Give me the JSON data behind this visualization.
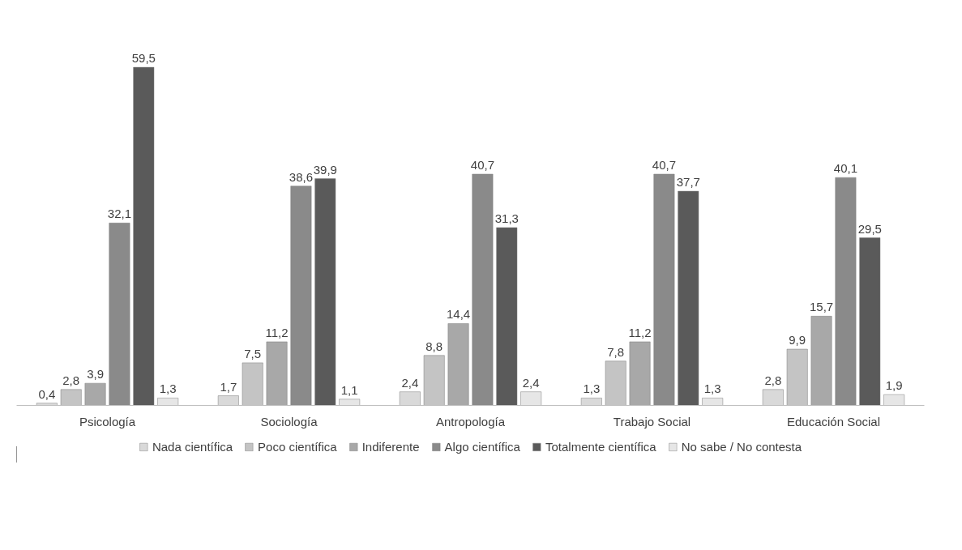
{
  "chart_data": {
    "type": "bar",
    "categories": [
      "Psicología",
      "Sociología",
      "Antropología",
      "Trabajo Social",
      "Educación Social"
    ],
    "series": [
      {
        "name": "Nada científica",
        "color": "#d9d9d9",
        "values": [
          0.4,
          1.7,
          2.4,
          1.3,
          2.8
        ],
        "value_labels": [
          "0,4",
          "1,7",
          "2,4",
          "1,3",
          "2,8"
        ]
      },
      {
        "name": "Poco científica",
        "color": "#c4c4c4",
        "values": [
          2.8,
          7.5,
          8.8,
          7.8,
          9.9
        ],
        "value_labels": [
          "2,8",
          "7,5",
          "8,8",
          "7,8",
          "9,9"
        ]
      },
      {
        "name": "Indiferente",
        "color": "#a8a8a8",
        "values": [
          3.9,
          11.2,
          14.4,
          11.2,
          15.7
        ],
        "value_labels": [
          "3,9",
          "11,2",
          "14,4",
          "11,2",
          "15,7"
        ]
      },
      {
        "name": "Algo científica",
        "color": "#8a8a8a",
        "values": [
          32.1,
          38.6,
          40.7,
          40.7,
          40.1
        ],
        "value_labels": [
          "32,1",
          "38,6",
          "40,7",
          "40,7",
          "40,1"
        ]
      },
      {
        "name": "Totalmente científica",
        "color": "#5a5a5a",
        "values": [
          59.5,
          39.9,
          31.3,
          37.7,
          29.5
        ],
        "value_labels": [
          "59,5",
          "39,9",
          "31,3",
          "37,7",
          "29,5"
        ]
      },
      {
        "name": "No sabe / No contesta",
        "color": "#e6e6e6",
        "values": [
          1.3,
          1.1,
          2.4,
          1.3,
          1.9
        ],
        "value_labels": [
          "1,3",
          "1,1",
          "2,4",
          "1,3",
          "1,9"
        ]
      }
    ],
    "legend": "bottom",
    "grid": false
  }
}
